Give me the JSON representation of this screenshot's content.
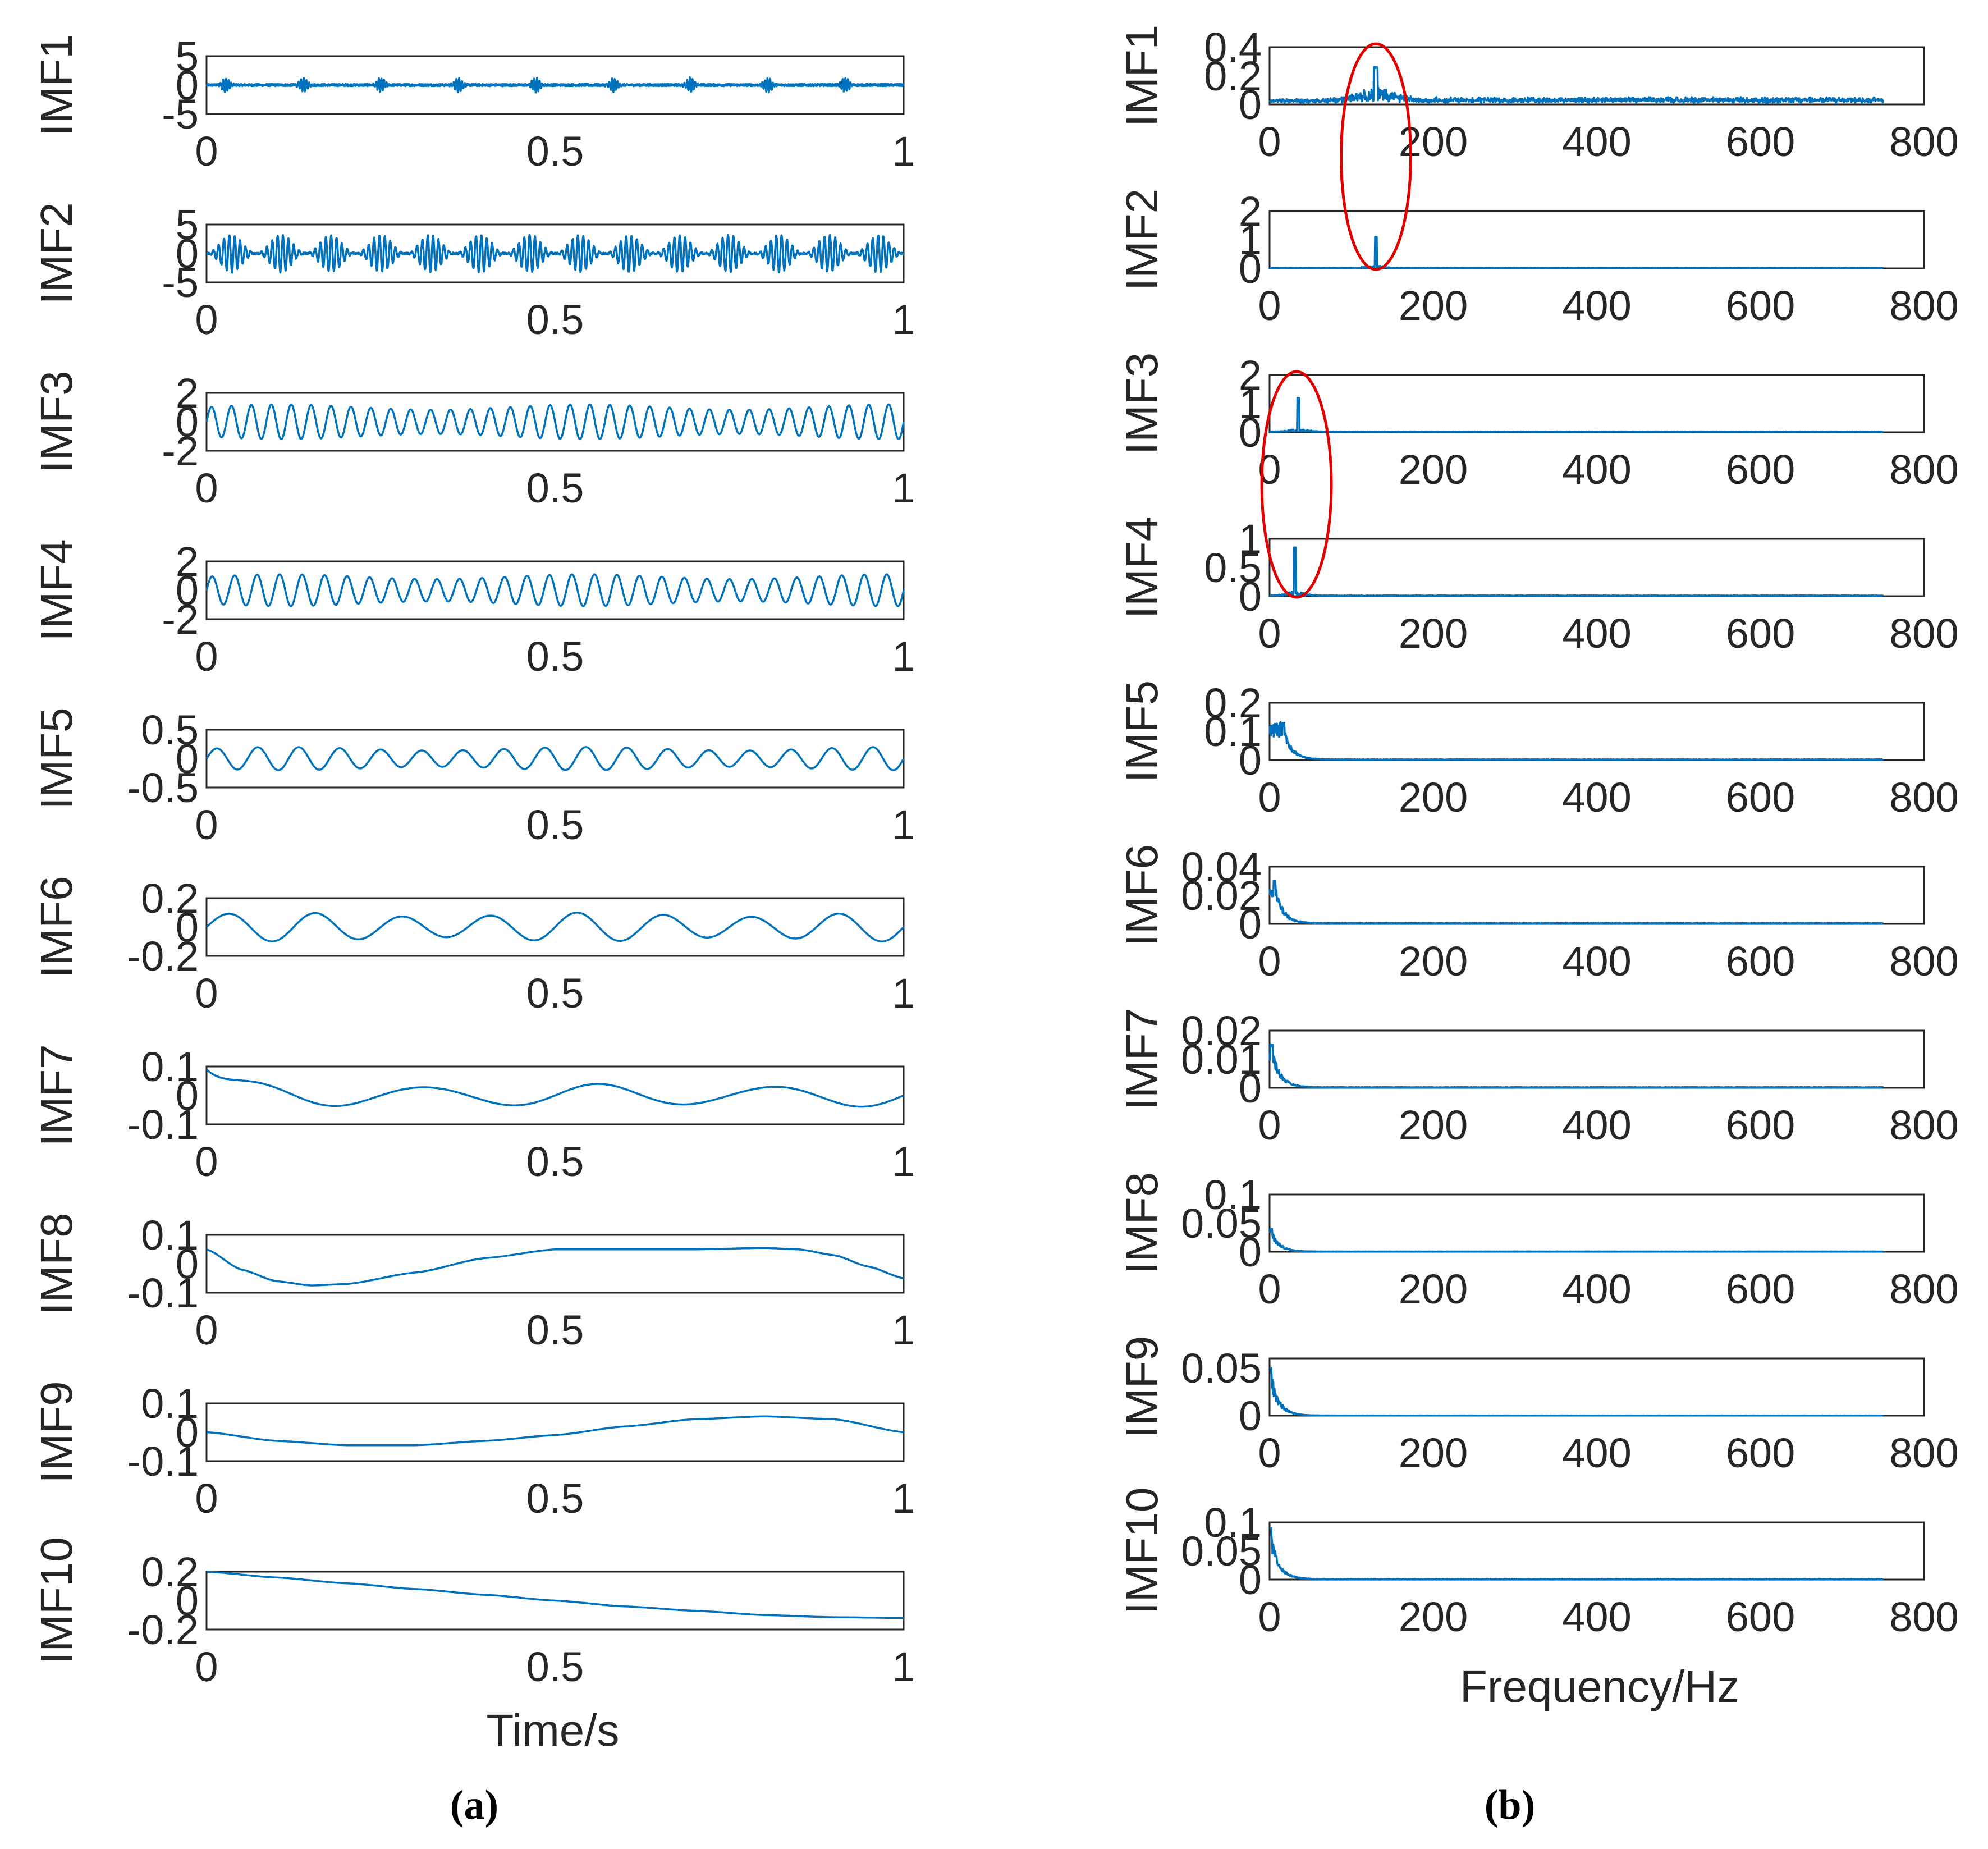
{
  "chart_data": [
    {
      "type": "line",
      "panel_label": "(a)",
      "xlabel": "Time/s",
      "xlim": [
        0,
        1
      ],
      "xticks": [
        "0",
        "0.5",
        "1"
      ],
      "series": [
        {
          "name": "IMF1",
          "ylabel": "IMF1",
          "yticks": [
            "5",
            "0",
            "-5"
          ],
          "ylim": [
            -5,
            5
          ],
          "signal": "noise_bursts",
          "amplitude": 0.5
        },
        {
          "name": "IMF2",
          "ylabel": "IMF2",
          "yticks": [
            "5",
            "0",
            "-5"
          ],
          "ylim": [
            -5,
            5
          ],
          "signal": "beating_bursts",
          "amplitude": 3.2,
          "carrier_hz": 130,
          "bursts": 14
        },
        {
          "name": "IMF3",
          "ylabel": "IMF3",
          "yticks": [
            "2",
            "0",
            "-2"
          ],
          "ylim": [
            -2,
            2
          ],
          "signal": "oscillation",
          "amplitude": 1.2,
          "frequency_hz": 35
        },
        {
          "name": "IMF4",
          "ylabel": "IMF4",
          "yticks": [
            "2",
            "0",
            "-2"
          ],
          "ylim": [
            -2,
            2
          ],
          "signal": "oscillation",
          "amplitude": 1.1,
          "frequency_hz": 31
        },
        {
          "name": "IMF5",
          "ylabel": "IMF5",
          "yticks": [
            "0.5",
            "0",
            "-0.5"
          ],
          "ylim": [
            -0.5,
            0.5
          ],
          "signal": "oscillation",
          "amplitude": 0.2,
          "frequency_hz": 17
        },
        {
          "name": "IMF6",
          "ylabel": "IMF6",
          "yticks": [
            "0.2",
            "0",
            "-0.2"
          ],
          "ylim": [
            -0.2,
            0.2
          ],
          "signal": "oscillation",
          "amplitude": 0.1,
          "frequency_hz": 8
        },
        {
          "name": "IMF7",
          "ylabel": "IMF7",
          "yticks": [
            "0.1",
            "0",
            "-0.1"
          ],
          "ylim": [
            -0.1,
            0.1
          ],
          "signal": "oscillation",
          "amplitude": 0.04,
          "frequency_hz": 4,
          "start_value": 0.09
        },
        {
          "name": "IMF8",
          "ylabel": "IMF8",
          "yticks": [
            "0.1",
            "0",
            "-0.1"
          ],
          "ylim": [
            -0.1,
            0.1
          ],
          "signal": "points",
          "x": [
            0,
            0.05,
            0.1,
            0.15,
            0.2,
            0.3,
            0.4,
            0.5,
            0.6,
            0.7,
            0.8,
            0.85,
            0.9,
            0.95,
            1.0
          ],
          "y": [
            0.05,
            -0.02,
            -0.06,
            -0.075,
            -0.07,
            -0.03,
            0.02,
            0.05,
            0.05,
            0.05,
            0.055,
            0.05,
            0.03,
            -0.01,
            -0.05
          ]
        },
        {
          "name": "IMF9",
          "ylabel": "IMF9",
          "yticks": [
            "0.1",
            "0",
            "-0.1"
          ],
          "ylim": [
            -0.1,
            0.1
          ],
          "signal": "points",
          "x": [
            0,
            0.1,
            0.2,
            0.3,
            0.4,
            0.5,
            0.6,
            0.7,
            0.8,
            0.9,
            1.0
          ],
          "y": [
            0.0,
            -0.03,
            -0.045,
            -0.045,
            -0.03,
            -0.01,
            0.02,
            0.045,
            0.055,
            0.045,
            0.0
          ]
        },
        {
          "name": "IMF10",
          "ylabel": "IMF10",
          "yticks": [
            "0.2",
            "0",
            "-0.2"
          ],
          "ylim": [
            -0.2,
            0.2
          ],
          "signal": "points",
          "x": [
            0,
            0.1,
            0.2,
            0.3,
            0.4,
            0.5,
            0.6,
            0.7,
            0.8,
            0.9,
            1.0
          ],
          "y": [
            0.2,
            0.16,
            0.12,
            0.08,
            0.04,
            0.0,
            -0.04,
            -0.07,
            -0.1,
            -0.115,
            -0.12
          ]
        }
      ]
    },
    {
      "type": "line",
      "panel_label": "(b)",
      "xlabel": "Frequency/Hz",
      "xlim": [
        0,
        800
      ],
      "xticks": [
        "0",
        "200",
        "400",
        "600",
        "800"
      ],
      "series": [
        {
          "name": "IMF1",
          "ylabel": "IMF1",
          "yticks": [
            "0.4",
            "0.2",
            "0"
          ],
          "ylim": [
            0,
            0.4
          ],
          "peak_hz": 130,
          "peak_value": 0.25,
          "floor": 0.02,
          "spread": "broad"
        },
        {
          "name": "IMF2",
          "ylabel": "IMF2",
          "yticks": [
            "2",
            "1",
            "0"
          ],
          "ylim": [
            0,
            2
          ],
          "peak_hz": 130,
          "peak_value": 1.1,
          "floor": 0.01,
          "spread": "narrow"
        },
        {
          "name": "IMF3",
          "ylabel": "IMF3",
          "yticks": [
            "2",
            "1",
            "0"
          ],
          "ylim": [
            0,
            2
          ],
          "peak_hz": 35,
          "peak_value": 1.2,
          "floor": 0.02,
          "spread": "narrow"
        },
        {
          "name": "IMF4",
          "ylabel": "IMF4",
          "yticks": [
            "1",
            "0.5",
            "0"
          ],
          "ylim": [
            0,
            1
          ],
          "peak_hz": 31,
          "peak_value": 0.85,
          "floor": 0.01,
          "spread": "narrow"
        },
        {
          "name": "IMF5",
          "ylabel": "IMF5",
          "yticks": [
            "0.2",
            "0.1",
            "0"
          ],
          "ylim": [
            0,
            0.2
          ],
          "peak_hz": 17,
          "peak_value": 0.13,
          "floor": 0.002,
          "spread": "low"
        },
        {
          "name": "IMF6",
          "ylabel": "IMF6",
          "yticks": [
            "0.04",
            "0.02",
            "0"
          ],
          "ylim": [
            0,
            0.04
          ],
          "peak_hz": 6,
          "peak_value": 0.03,
          "floor": 0.0005,
          "spread": "low"
        },
        {
          "name": "IMF7",
          "ylabel": "IMF7",
          "yticks": [
            "0.02",
            "0.01",
            "0"
          ],
          "ylim": [
            0,
            0.02
          ],
          "peak_hz": 3,
          "peak_value": 0.015,
          "floor": 0.0002,
          "spread": "low"
        },
        {
          "name": "IMF8",
          "ylabel": "IMF8",
          "yticks": [
            "0.1",
            "0.05",
            "0"
          ],
          "ylim": [
            0,
            0.1
          ],
          "peak_hz": 2,
          "peak_value": 0.04,
          "floor": 0.0005,
          "spread": "low"
        },
        {
          "name": "IMF9",
          "ylabel": "IMF9",
          "yticks": [
            "0.05",
            "0"
          ],
          "ylim": [
            0,
            0.06
          ],
          "peak_hz": 1,
          "peak_value": 0.05,
          "floor": 0.0002,
          "spread": "low"
        },
        {
          "name": "IMF10",
          "ylabel": "IMF10",
          "yticks": [
            "0.1",
            "0.05",
            "0"
          ],
          "ylim": [
            0,
            0.1
          ],
          "peak_hz": 1,
          "peak_value": 0.09,
          "floor": 0.001,
          "spread": "low"
        }
      ],
      "max_plotted_hz": 750,
      "highlighted_peaks": [
        {
          "near_hz": 130,
          "spans": [
            "IMF1",
            "IMF2"
          ]
        },
        {
          "near_hz": 33,
          "spans": [
            "IMF3",
            "IMF4"
          ]
        }
      ]
    }
  ],
  "colors": {
    "trace": "#0072BD",
    "marker": "#e00000",
    "axes": "#262626"
  }
}
